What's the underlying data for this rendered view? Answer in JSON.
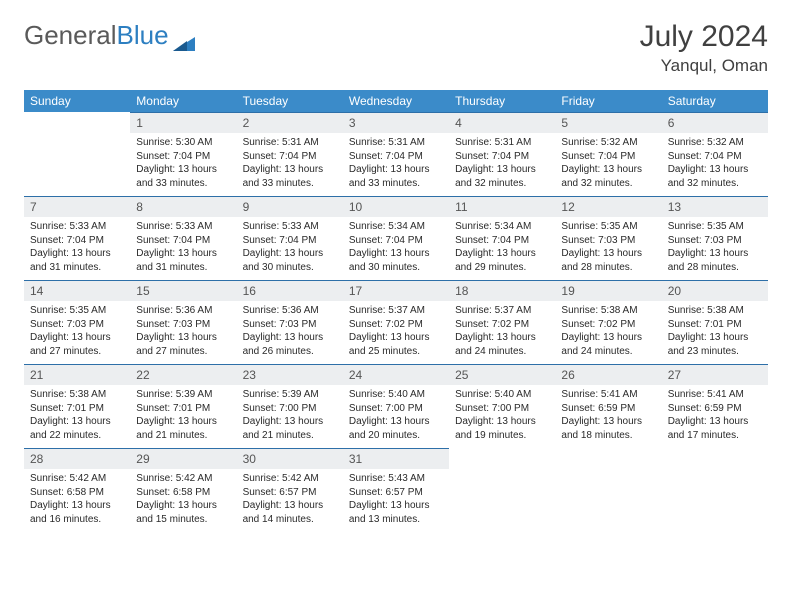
{
  "brand": {
    "part1": "General",
    "part2": "Blue"
  },
  "title": "July 2024",
  "location": "Yanqul, Oman",
  "colors": {
    "header_bg": "#3b8bc9",
    "header_text": "#ffffff",
    "daynum_bg": "#eceef0",
    "daynum_border": "#2d6fa8",
    "text": "#2a2a2a",
    "logo_gray": "#5a5a5a",
    "logo_blue": "#2d7fc1"
  },
  "weekdays": [
    "Sunday",
    "Monday",
    "Tuesday",
    "Wednesday",
    "Thursday",
    "Friday",
    "Saturday"
  ],
  "weeks": [
    [
      {
        "n": "",
        "sr": "",
        "ss": "",
        "dl": ""
      },
      {
        "n": "1",
        "sr": "Sunrise: 5:30 AM",
        "ss": "Sunset: 7:04 PM",
        "dl": "Daylight: 13 hours and 33 minutes."
      },
      {
        "n": "2",
        "sr": "Sunrise: 5:31 AM",
        "ss": "Sunset: 7:04 PM",
        "dl": "Daylight: 13 hours and 33 minutes."
      },
      {
        "n": "3",
        "sr": "Sunrise: 5:31 AM",
        "ss": "Sunset: 7:04 PM",
        "dl": "Daylight: 13 hours and 33 minutes."
      },
      {
        "n": "4",
        "sr": "Sunrise: 5:31 AM",
        "ss": "Sunset: 7:04 PM",
        "dl": "Daylight: 13 hours and 32 minutes."
      },
      {
        "n": "5",
        "sr": "Sunrise: 5:32 AM",
        "ss": "Sunset: 7:04 PM",
        "dl": "Daylight: 13 hours and 32 minutes."
      },
      {
        "n": "6",
        "sr": "Sunrise: 5:32 AM",
        "ss": "Sunset: 7:04 PM",
        "dl": "Daylight: 13 hours and 32 minutes."
      }
    ],
    [
      {
        "n": "7",
        "sr": "Sunrise: 5:33 AM",
        "ss": "Sunset: 7:04 PM",
        "dl": "Daylight: 13 hours and 31 minutes."
      },
      {
        "n": "8",
        "sr": "Sunrise: 5:33 AM",
        "ss": "Sunset: 7:04 PM",
        "dl": "Daylight: 13 hours and 31 minutes."
      },
      {
        "n": "9",
        "sr": "Sunrise: 5:33 AM",
        "ss": "Sunset: 7:04 PM",
        "dl": "Daylight: 13 hours and 30 minutes."
      },
      {
        "n": "10",
        "sr": "Sunrise: 5:34 AM",
        "ss": "Sunset: 7:04 PM",
        "dl": "Daylight: 13 hours and 30 minutes."
      },
      {
        "n": "11",
        "sr": "Sunrise: 5:34 AM",
        "ss": "Sunset: 7:04 PM",
        "dl": "Daylight: 13 hours and 29 minutes."
      },
      {
        "n": "12",
        "sr": "Sunrise: 5:35 AM",
        "ss": "Sunset: 7:03 PM",
        "dl": "Daylight: 13 hours and 28 minutes."
      },
      {
        "n": "13",
        "sr": "Sunrise: 5:35 AM",
        "ss": "Sunset: 7:03 PM",
        "dl": "Daylight: 13 hours and 28 minutes."
      }
    ],
    [
      {
        "n": "14",
        "sr": "Sunrise: 5:35 AM",
        "ss": "Sunset: 7:03 PM",
        "dl": "Daylight: 13 hours and 27 minutes."
      },
      {
        "n": "15",
        "sr": "Sunrise: 5:36 AM",
        "ss": "Sunset: 7:03 PM",
        "dl": "Daylight: 13 hours and 27 minutes."
      },
      {
        "n": "16",
        "sr": "Sunrise: 5:36 AM",
        "ss": "Sunset: 7:03 PM",
        "dl": "Daylight: 13 hours and 26 minutes."
      },
      {
        "n": "17",
        "sr": "Sunrise: 5:37 AM",
        "ss": "Sunset: 7:02 PM",
        "dl": "Daylight: 13 hours and 25 minutes."
      },
      {
        "n": "18",
        "sr": "Sunrise: 5:37 AM",
        "ss": "Sunset: 7:02 PM",
        "dl": "Daylight: 13 hours and 24 minutes."
      },
      {
        "n": "19",
        "sr": "Sunrise: 5:38 AM",
        "ss": "Sunset: 7:02 PM",
        "dl": "Daylight: 13 hours and 24 minutes."
      },
      {
        "n": "20",
        "sr": "Sunrise: 5:38 AM",
        "ss": "Sunset: 7:01 PM",
        "dl": "Daylight: 13 hours and 23 minutes."
      }
    ],
    [
      {
        "n": "21",
        "sr": "Sunrise: 5:38 AM",
        "ss": "Sunset: 7:01 PM",
        "dl": "Daylight: 13 hours and 22 minutes."
      },
      {
        "n": "22",
        "sr": "Sunrise: 5:39 AM",
        "ss": "Sunset: 7:01 PM",
        "dl": "Daylight: 13 hours and 21 minutes."
      },
      {
        "n": "23",
        "sr": "Sunrise: 5:39 AM",
        "ss": "Sunset: 7:00 PM",
        "dl": "Daylight: 13 hours and 21 minutes."
      },
      {
        "n": "24",
        "sr": "Sunrise: 5:40 AM",
        "ss": "Sunset: 7:00 PM",
        "dl": "Daylight: 13 hours and 20 minutes."
      },
      {
        "n": "25",
        "sr": "Sunrise: 5:40 AM",
        "ss": "Sunset: 7:00 PM",
        "dl": "Daylight: 13 hours and 19 minutes."
      },
      {
        "n": "26",
        "sr": "Sunrise: 5:41 AM",
        "ss": "Sunset: 6:59 PM",
        "dl": "Daylight: 13 hours and 18 minutes."
      },
      {
        "n": "27",
        "sr": "Sunrise: 5:41 AM",
        "ss": "Sunset: 6:59 PM",
        "dl": "Daylight: 13 hours and 17 minutes."
      }
    ],
    [
      {
        "n": "28",
        "sr": "Sunrise: 5:42 AM",
        "ss": "Sunset: 6:58 PM",
        "dl": "Daylight: 13 hours and 16 minutes."
      },
      {
        "n": "29",
        "sr": "Sunrise: 5:42 AM",
        "ss": "Sunset: 6:58 PM",
        "dl": "Daylight: 13 hours and 15 minutes."
      },
      {
        "n": "30",
        "sr": "Sunrise: 5:42 AM",
        "ss": "Sunset: 6:57 PM",
        "dl": "Daylight: 13 hours and 14 minutes."
      },
      {
        "n": "31",
        "sr": "Sunrise: 5:43 AM",
        "ss": "Sunset: 6:57 PM",
        "dl": "Daylight: 13 hours and 13 minutes."
      },
      {
        "n": "",
        "sr": "",
        "ss": "",
        "dl": ""
      },
      {
        "n": "",
        "sr": "",
        "ss": "",
        "dl": ""
      },
      {
        "n": "",
        "sr": "",
        "ss": "",
        "dl": ""
      }
    ]
  ]
}
